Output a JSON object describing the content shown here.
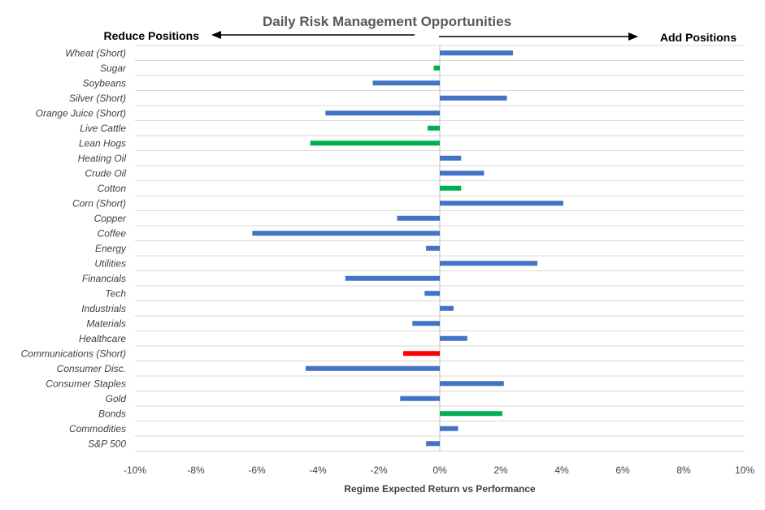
{
  "chart_data": {
    "type": "bar",
    "orientation": "horizontal",
    "title": "Daily Risk Management Opportunities",
    "xlabel": "Regime Expected Return vs Performance",
    "left_label": "Reduce Positions",
    "right_label": "Add Positions",
    "xlim": [
      -10,
      10
    ],
    "xticks": [
      -10,
      -8,
      -6,
      -4,
      -2,
      0,
      2,
      4,
      6,
      8,
      10
    ],
    "xtick_labels": [
      "-10%",
      "-8%",
      "-6%",
      "-4%",
      "-2%",
      "0%",
      "2%",
      "4%",
      "6%",
      "8%",
      "10%"
    ],
    "grid": true,
    "legend": "none",
    "colors": {
      "blue": "#4472c4",
      "green": "#00b050",
      "red": "#ff0000"
    },
    "categories": [
      "Wheat (Short)",
      "Sugar",
      "Soybeans",
      "Silver (Short)",
      "Orange Juice (Short)",
      "Live Cattle",
      "Lean Hogs",
      "Heating Oil",
      "Crude Oil",
      "Cotton",
      "Corn (Short)",
      "Copper",
      "Coffee",
      "Energy",
      "Utilities",
      "Financials",
      "Tech",
      "Industrials",
      "Materials",
      "Healthcare",
      "Communications (Short)",
      "Consumer Disc.",
      "Consumer Staples",
      "Gold",
      "Bonds",
      "Commodities",
      "S&P 500"
    ],
    "values": [
      2.4,
      -0.2,
      -2.2,
      2.2,
      -3.75,
      -0.4,
      -4.25,
      0.7,
      1.45,
      0.7,
      4.05,
      -1.4,
      -6.15,
      -0.45,
      3.2,
      -3.1,
      -0.5,
      0.45,
      -0.9,
      0.9,
      -1.2,
      -4.4,
      2.1,
      -1.3,
      2.05,
      0.6,
      -0.45
    ],
    "bar_colors": [
      "blue",
      "green",
      "blue",
      "blue",
      "blue",
      "green",
      "green",
      "blue",
      "blue",
      "green",
      "blue",
      "blue",
      "blue",
      "blue",
      "blue",
      "blue",
      "blue",
      "blue",
      "blue",
      "blue",
      "red",
      "blue",
      "blue",
      "blue",
      "green",
      "blue",
      "blue"
    ]
  }
}
